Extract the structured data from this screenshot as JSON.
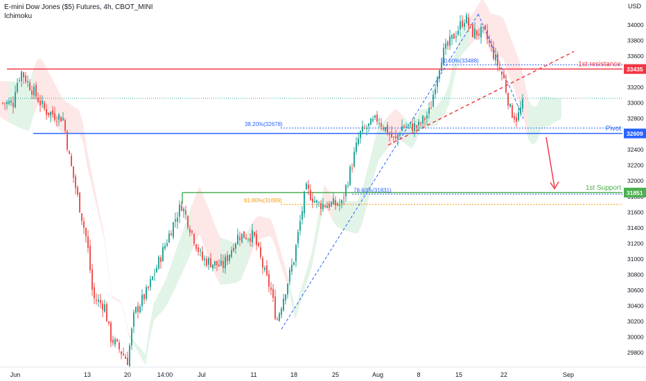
{
  "header": {
    "symbol_line": "E-mini Dow Jones ($5) Futures, 4h, CBOT_MINI",
    "indicator_line": "Ichimoku"
  },
  "colors": {
    "background": "#ffffff",
    "up": "#26a69a",
    "down": "#ef5350",
    "resistance": "#f23645",
    "pivot": "#2962ff",
    "support": "#4caf50",
    "fib": "#ff9800",
    "cloud_green": "#dff3e4",
    "cloud_red": "#fde4e4"
  },
  "chart_data": {
    "type": "line",
    "title": "",
    "currency": "USD",
    "ylim": [
      29640,
      34240
    ],
    "y_ticks": [
      29800,
      30000,
      30200,
      30400,
      30600,
      30800,
      31000,
      31200,
      31400,
      31600,
      31800,
      32000,
      32200,
      32400,
      32600,
      32800,
      33000,
      33200,
      33400,
      33600,
      33800,
      34000
    ],
    "x_tick_labels": [
      "Jun",
      "13",
      "20",
      "14:00",
      "Jul",
      "11",
      "18",
      "25",
      "Aug",
      "8",
      "15",
      "22",
      "Sep"
    ],
    "series": [
      {
        "name": "",
        "x": [
          "Jun 01",
          "Jun 02",
          "Jun 06",
          "Jun 09",
          "Jun 10",
          "Jun 13",
          "Jun 14",
          "Jun 16",
          "Jun 17",
          "Jun 20",
          "Jun 21",
          "Jun 23",
          "Jun 27",
          "Jun 28",
          "Jul 01",
          "Jul 05",
          "Jul 08",
          "Jul 11",
          "Jul 13",
          "Jul 14",
          "Jul 15",
          "Jul 18",
          "Jul 20",
          "Jul 22",
          "Jul 26",
          "Jul 28",
          "Jul 29",
          "Aug 01",
          "Aug 03",
          "Aug 04",
          "Aug 05",
          "Aug 08",
          "Aug 10",
          "Aug 11",
          "Aug 12",
          "Aug 16",
          "Aug 17",
          "Aug 19",
          "Aug 22",
          "Aug 23",
          "Aug 24",
          "Aug 25"
        ],
        "values": [
          33200,
          33400,
          32900,
          32800,
          32300,
          31200,
          30500,
          30400,
          30000,
          29700,
          30300,
          30600,
          31500,
          31700,
          31000,
          30900,
          31300,
          31300,
          30800,
          30600,
          30200,
          31000,
          31900,
          31700,
          31700,
          32300,
          32600,
          32800,
          32600,
          32500,
          32700,
          32700,
          32900,
          33300,
          33600,
          34100,
          33900,
          33900,
          33300,
          32900,
          32800,
          33000
        ]
      }
    ],
    "levels": {
      "first_resistance": {
        "label": "1st resistance",
        "value": 33435,
        "value_label": "33435"
      },
      "pivot": {
        "label": "Pivot",
        "value": 32609,
        "value_label": "32609"
      },
      "first_support": {
        "label": "1st Support",
        "value": 31851,
        "value_label": "31851"
      }
    },
    "fib_labels": [
      {
        "text": "50.00%(33488)",
        "value": 33488
      },
      {
        "text": "38.20%(32678)",
        "value": 32678
      },
      {
        "text": "78.60%(31831)",
        "value": 31831
      },
      {
        "text": "61.80%(31699)",
        "value": 31699
      }
    ],
    "grid": false,
    "legend": "none"
  }
}
